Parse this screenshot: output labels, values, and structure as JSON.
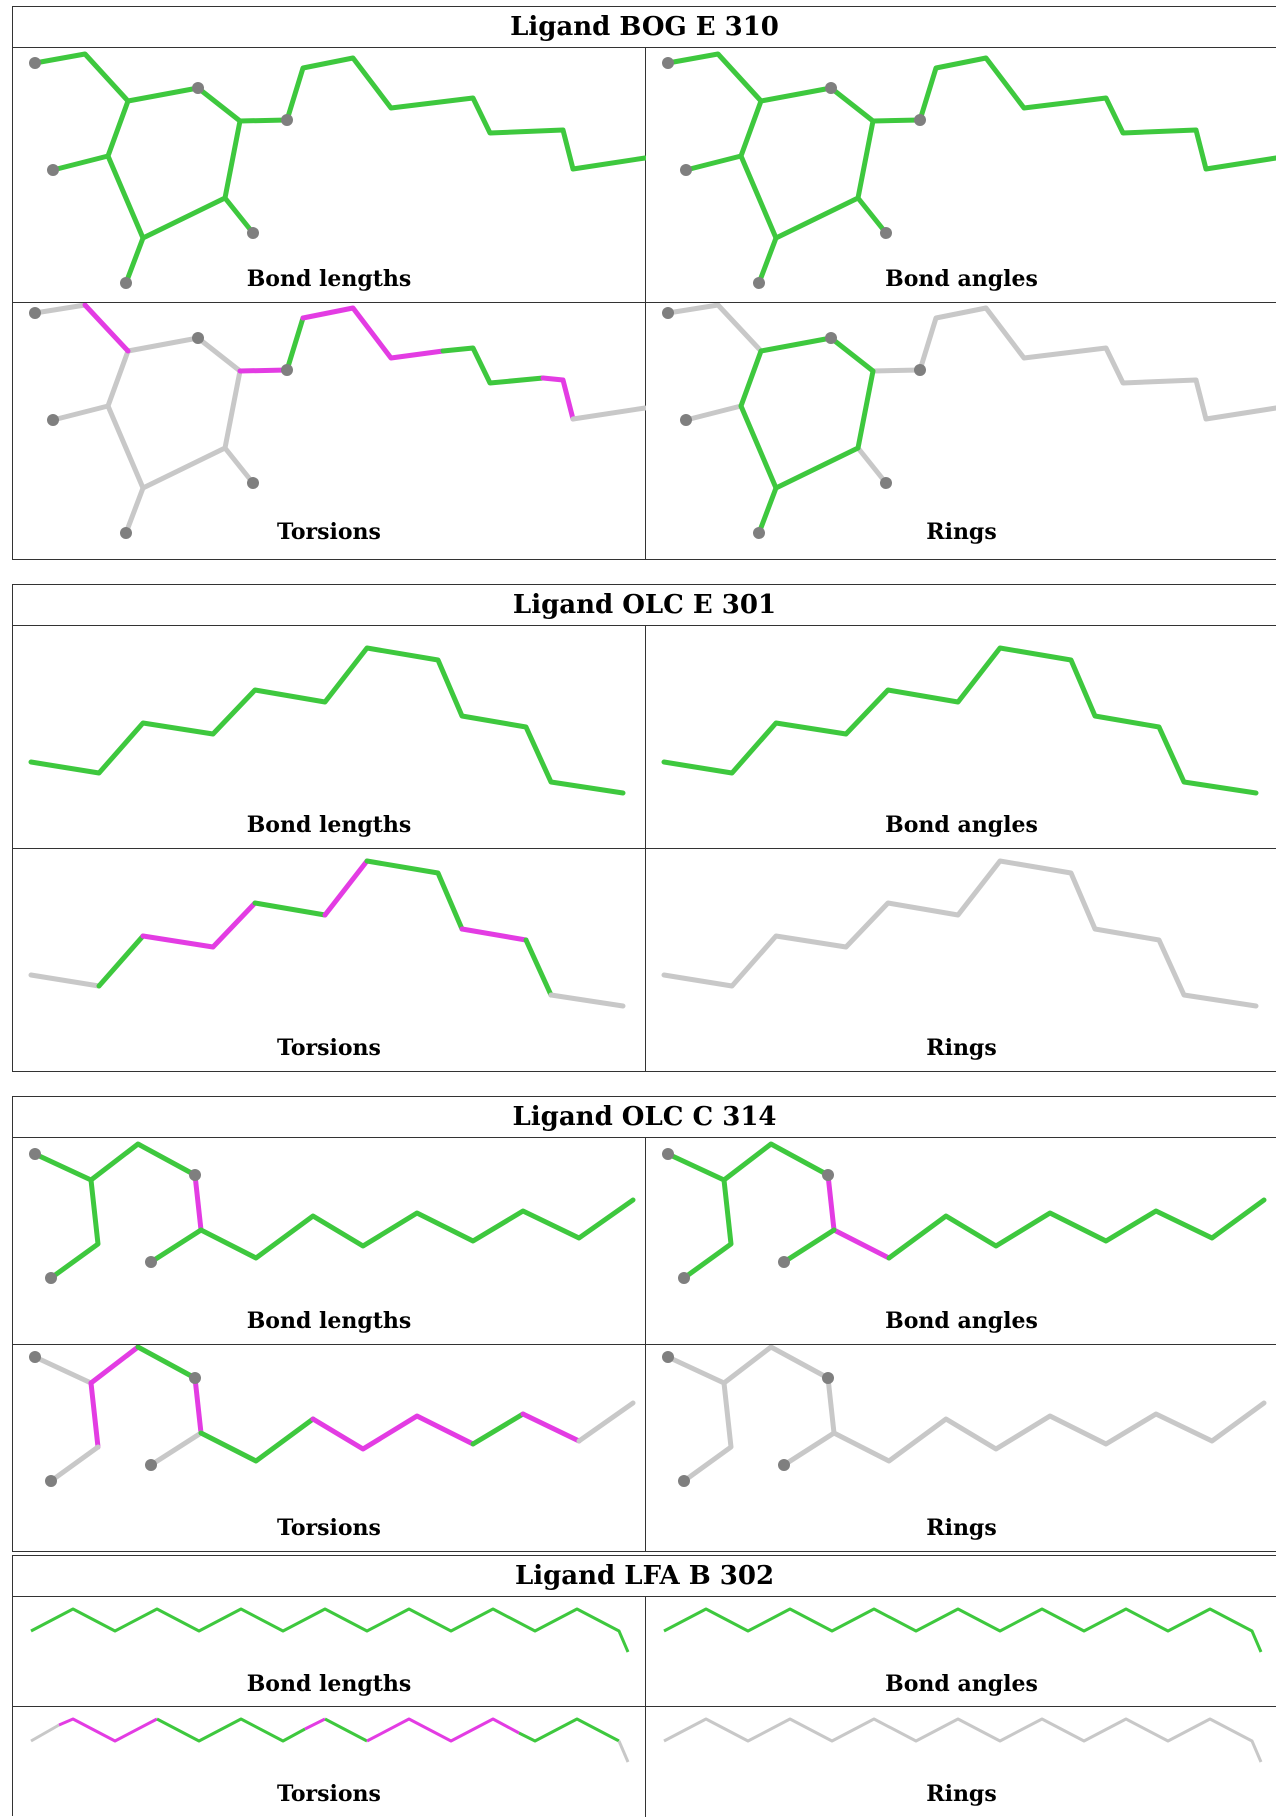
{
  "colors": {
    "ok": "#3ec83e",
    "outlier": "#e33ce3",
    "neutral": "#c8c8c8",
    "atom": "#7f7f7f"
  },
  "ligands": [
    {
      "title": "Ligand BOG E 310",
      "panels": [
        {
          "label": "Bond lengths"
        },
        {
          "label": "Bond angles"
        },
        {
          "label": "Torsions"
        },
        {
          "label": "Rings"
        }
      ]
    },
    {
      "title": "Ligand OLC E 301",
      "panels": [
        {
          "label": "Bond lengths"
        },
        {
          "label": "Bond angles"
        },
        {
          "label": "Torsions"
        },
        {
          "label": "Rings"
        }
      ]
    },
    {
      "title": "Ligand OLC C 314",
      "panels": [
        {
          "label": "Bond lengths"
        },
        {
          "label": "Bond angles"
        },
        {
          "label": "Torsions"
        },
        {
          "label": "Rings"
        }
      ]
    },
    {
      "title": "Ligand LFA B 302",
      "panels": [
        {
          "label": "Bond lengths"
        },
        {
          "label": "Bond angles"
        },
        {
          "label": "Torsions"
        },
        {
          "label": "Rings"
        }
      ]
    }
  ]
}
